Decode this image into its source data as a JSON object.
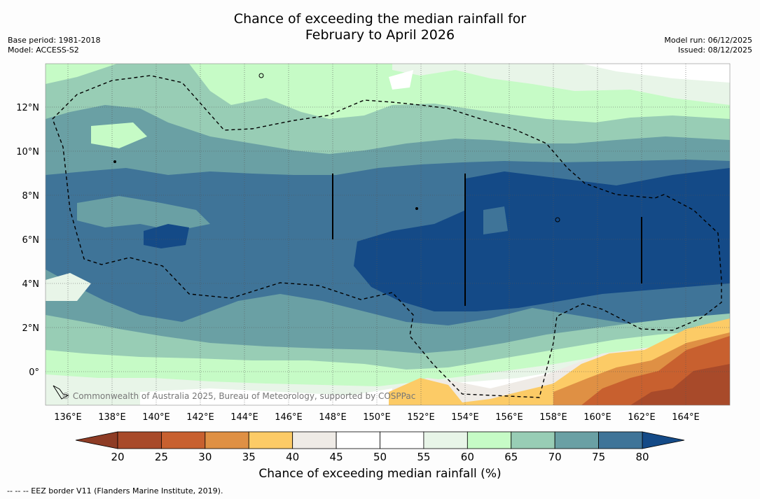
{
  "title_line1": "Chance of exceeding the median rainfall for",
  "title_line2": "February to April 2026",
  "base_period": "Base period: 1981-2018",
  "model": "Model: ACCESS-S2",
  "model_run": "Model run: 06/12/2025",
  "issued": "Issued: 08/12/2025",
  "copyright": "© Commonwealth of Australia 2025, Bureau of Meteorology, supported by COSPPac",
  "colorbar_title": "Chance of exceeding median rainfall (%)",
  "footnote": "-- -- -- EEZ border V11 (Flanders Marine Institute, 2019).",
  "lon_ticks": [
    "136°E",
    "138°E",
    "140°E",
    "142°E",
    "144°E",
    "146°E",
    "148°E",
    "150°E",
    "152°E",
    "154°E",
    "156°E",
    "158°E",
    "160°E",
    "162°E",
    "164°E"
  ],
  "lat_ticks": [
    "12°N",
    "10°N",
    "8°N",
    "6°N",
    "4°N",
    "2°N",
    "0°"
  ],
  "colorbar_labels": [
    "20",
    "25",
    "30",
    "35",
    "40",
    "45",
    "50",
    "55",
    "60",
    "65",
    "70",
    "75",
    "80"
  ],
  "colorbar_colors": [
    "#a84a2a",
    "#c8602f",
    "#df9044",
    "#fccb66",
    "#efebe6",
    "#ffffff",
    "#ffffff",
    "#e8f5e8",
    "#c6fbc6",
    "#98cdb5",
    "#6aa0a4",
    "#3f7498"
  ],
  "colorbar_low_color": "#8e3c25",
  "colorbar_high_color": "#144a87"
}
